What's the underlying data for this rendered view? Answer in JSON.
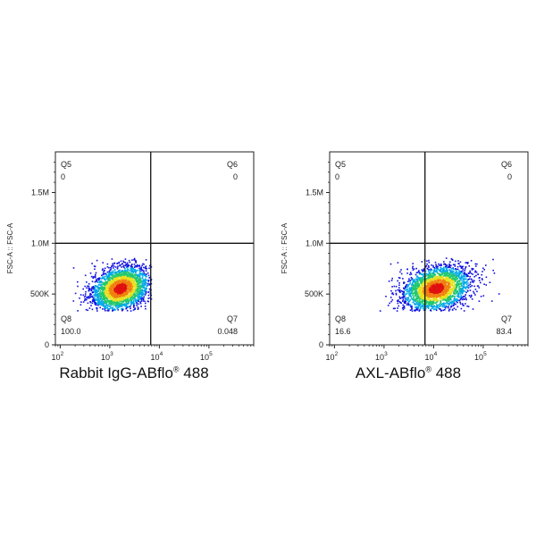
{
  "chart_data": [
    {
      "type": "scatter",
      "subtype": "flow-cytometry-density-dot-plot",
      "xlabel": "Rabbit IgG-ABflo",
      "xlabel_mark": "®",
      "xlabel_suffix": "488",
      "ylabel": "FSC-A :: FSC-A",
      "x_scale": "log",
      "xlim": [
        80,
        800000
      ],
      "x_ticks": [
        {
          "value": 100,
          "base": "10",
          "exp": "2"
        },
        {
          "value": 1000,
          "base": "10",
          "exp": "3"
        },
        {
          "value": 10000,
          "base": "10",
          "exp": "4"
        },
        {
          "value": 100000,
          "base": "10",
          "exp": "5"
        }
      ],
      "ylim": [
        0,
        1900000
      ],
      "y_ticks": [
        {
          "value": 0,
          "label": "0"
        },
        {
          "value": 500000,
          "label": "500K"
        },
        {
          "value": 1000000,
          "label": "1.0M"
        },
        {
          "value": 1500000,
          "label": "1.5M"
        }
      ],
      "gate": {
        "x": 6700,
        "y": 1000000
      },
      "population": {
        "x_center": 1600,
        "x_spread_log10": 0.3,
        "y_center": 560000,
        "y_spread": 110000,
        "y_min": 340000,
        "y_max": 860000,
        "x_max": 6700
      },
      "quadrants": [
        {
          "name": "Q5",
          "percent": "0",
          "position": "top-left"
        },
        {
          "name": "Q6",
          "percent": "0",
          "position": "top-right"
        },
        {
          "name": "Q8",
          "percent": "100.0",
          "position": "bottom-left"
        },
        {
          "name": "Q7",
          "percent": "0.048",
          "position": "bottom-right"
        }
      ],
      "colors": {
        "axis": "#222222",
        "gate": "#111111",
        "density": [
          "#1010e0",
          "#00a8e8",
          "#20c870",
          "#e8e020",
          "#f08010",
          "#e01010"
        ]
      }
    },
    {
      "type": "scatter",
      "subtype": "flow-cytometry-density-dot-plot",
      "xlabel": "AXL-ABflo",
      "xlabel_mark": "®",
      "xlabel_suffix": "488",
      "ylabel": "FSC-A :: FSC-A",
      "x_scale": "log",
      "xlim": [
        80,
        800000
      ],
      "x_ticks": [
        {
          "value": 100,
          "base": "10",
          "exp": "2"
        },
        {
          "value": 1000,
          "base": "10",
          "exp": "3"
        },
        {
          "value": 10000,
          "base": "10",
          "exp": "4"
        },
        {
          "value": 100000,
          "base": "10",
          "exp": "5"
        }
      ],
      "ylim": [
        0,
        1900000
      ],
      "y_ticks": [
        {
          "value": 0,
          "label": "0"
        },
        {
          "value": 500000,
          "label": "500K"
        },
        {
          "value": 1000000,
          "label": "1.0M"
        },
        {
          "value": 1500000,
          "label": "1.5M"
        }
      ],
      "gate": {
        "x": 6700,
        "y": 1000000
      },
      "population": {
        "x_center": 11000,
        "x_spread_log10": 0.35,
        "y_center": 560000,
        "y_spread": 110000,
        "y_min": 340000,
        "y_max": 860000,
        "x_max": 400000
      },
      "quadrants": [
        {
          "name": "Q5",
          "percent": "0",
          "position": "top-left"
        },
        {
          "name": "Q6",
          "percent": "0",
          "position": "top-right"
        },
        {
          "name": "Q8",
          "percent": "16.6",
          "position": "bottom-left"
        },
        {
          "name": "Q7",
          "percent": "83.4",
          "position": "bottom-right"
        }
      ],
      "colors": {
        "axis": "#222222",
        "gate": "#111111",
        "density": [
          "#1010e0",
          "#00a8e8",
          "#20c870",
          "#e8e020",
          "#f08010",
          "#e01010"
        ]
      }
    }
  ]
}
